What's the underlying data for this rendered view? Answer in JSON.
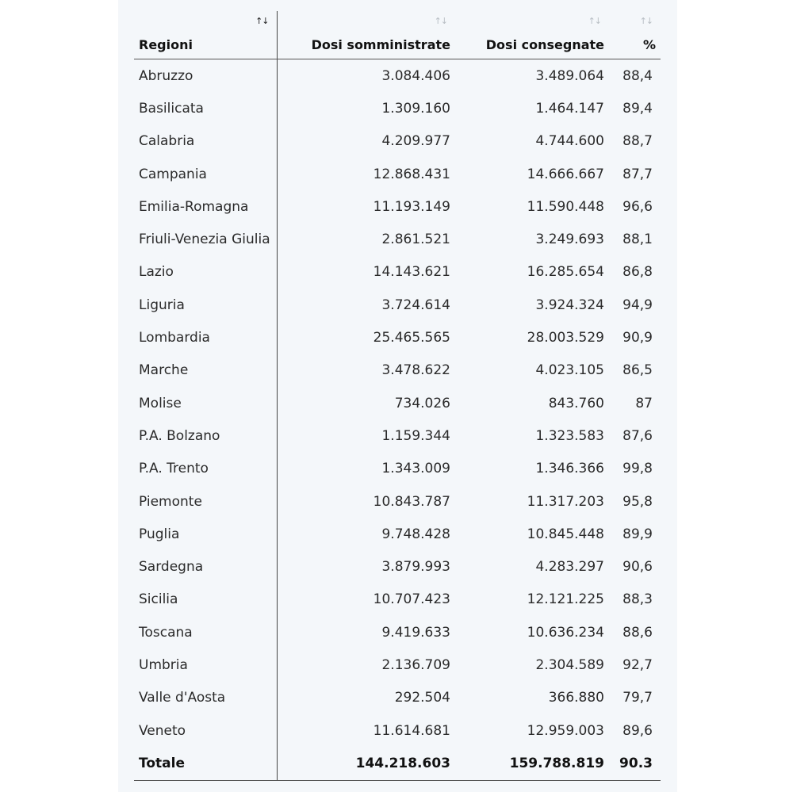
{
  "table": {
    "headers": [
      "Regioni",
      "Dosi somministrate",
      "Dosi consegnate",
      "%"
    ],
    "sort_icon": "↑↓",
    "rows": [
      {
        "region": "Abruzzo",
        "administered": "3.084.406",
        "delivered": "3.489.064",
        "pct": "88,4"
      },
      {
        "region": "Basilicata",
        "administered": "1.309.160",
        "delivered": "1.464.147",
        "pct": "89,4"
      },
      {
        "region": "Calabria",
        "administered": "4.209.977",
        "delivered": "4.744.600",
        "pct": "88,7"
      },
      {
        "region": "Campania",
        "administered": "12.868.431",
        "delivered": "14.666.667",
        "pct": "87,7"
      },
      {
        "region": "Emilia-Romagna",
        "administered": "11.193.149",
        "delivered": "11.590.448",
        "pct": "96,6"
      },
      {
        "region": "Friuli-Venezia Giulia",
        "administered": "2.861.521",
        "delivered": "3.249.693",
        "pct": "88,1"
      },
      {
        "region": "Lazio",
        "administered": "14.143.621",
        "delivered": "16.285.654",
        "pct": "86,8"
      },
      {
        "region": "Liguria",
        "administered": "3.724.614",
        "delivered": "3.924.324",
        "pct": "94,9"
      },
      {
        "region": "Lombardia",
        "administered": "25.465.565",
        "delivered": "28.003.529",
        "pct": "90,9"
      },
      {
        "region": "Marche",
        "administered": "3.478.622",
        "delivered": "4.023.105",
        "pct": "86,5"
      },
      {
        "region": "Molise",
        "administered": "734.026",
        "delivered": "843.760",
        "pct": "87"
      },
      {
        "region": "P.A. Bolzano",
        "administered": "1.159.344",
        "delivered": "1.323.583",
        "pct": "87,6"
      },
      {
        "region": "P.A. Trento",
        "administered": "1.343.009",
        "delivered": "1.346.366",
        "pct": "99,8"
      },
      {
        "region": "Piemonte",
        "administered": "10.843.787",
        "delivered": "11.317.203",
        "pct": "95,8"
      },
      {
        "region": "Puglia",
        "administered": "9.748.428",
        "delivered": "10.845.448",
        "pct": "89,9"
      },
      {
        "region": "Sardegna",
        "administered": "3.879.993",
        "delivered": "4.283.297",
        "pct": "90,6"
      },
      {
        "region": "Sicilia",
        "administered": "10.707.423",
        "delivered": "12.121.225",
        "pct": "88,3"
      },
      {
        "region": "Toscana",
        "administered": "9.419.633",
        "delivered": "10.636.234",
        "pct": "88,6"
      },
      {
        "region": "Umbria",
        "administered": "2.136.709",
        "delivered": "2.304.589",
        "pct": "92,7"
      },
      {
        "region": "Valle d'Aosta",
        "administered": "292.504",
        "delivered": "366.880",
        "pct": "79,7"
      },
      {
        "region": "Veneto",
        "administered": "11.614.681",
        "delivered": "12.959.003",
        "pct": "89,6"
      }
    ],
    "total": {
      "region": "Totale",
      "administered": "144.218.603",
      "delivered": "159.788.819",
      "pct": "90.3"
    }
  }
}
